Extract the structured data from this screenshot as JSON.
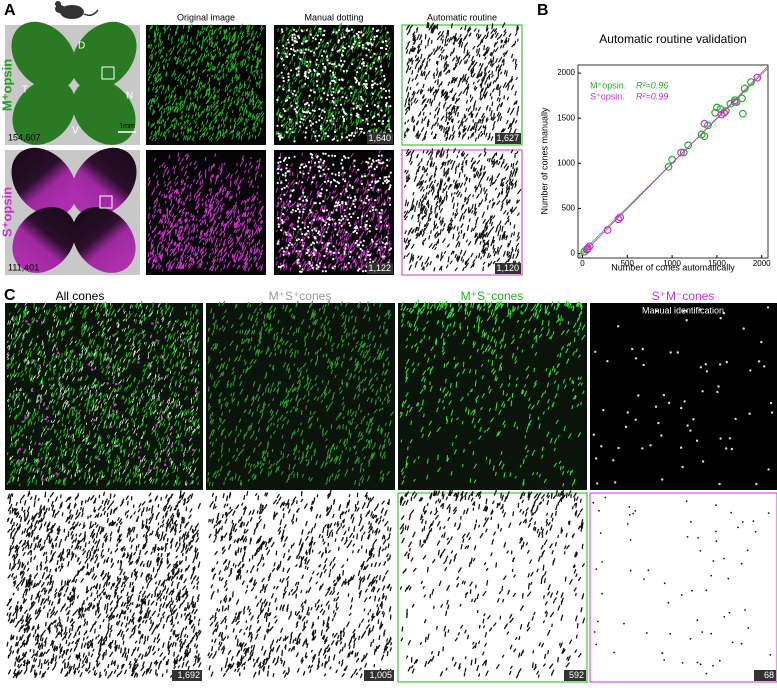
{
  "panel_a": {
    "label": "A",
    "row_labels": [
      "M⁺opsin",
      "S⁺opsin"
    ],
    "column_headers": [
      "Original image",
      "Manual dotting",
      "Automatic routine"
    ],
    "orientation": [
      "D",
      "T",
      "N",
      "V"
    ],
    "scale_bar": "1mm",
    "retina_counts": [
      "154,607",
      "111,401"
    ],
    "counts": [
      [
        "1,640",
        "1,627"
      ],
      [
        "1,122",
        "1,120"
      ]
    ]
  },
  "panel_b": {
    "label": "B"
  },
  "chart_data": {
    "type": "scatter",
    "title": "Automatic routine validation",
    "x_label": "Number of cones automatically",
    "y_label": "Number of cones manually",
    "xlim": [
      -50,
      2070
    ],
    "ylim": [
      -50,
      2090
    ],
    "xticks": [
      0,
      500,
      1000,
      1500,
      2000
    ],
    "yticks": [
      0,
      500,
      1000,
      1500,
      2000
    ],
    "series": [
      {
        "name": "M⁺opsin.",
        "r2": "R²=0.96",
        "color": "#22b422",
        "x": [
          20,
          50,
          960,
          1000,
          1130,
          1180,
          1330,
          1360,
          1400,
          1480,
          1500,
          1540,
          1600,
          1650,
          1700,
          1720,
          1780,
          1790,
          1810,
          1880
        ],
        "values": [
          20,
          40,
          960,
          1040,
          1120,
          1200,
          1320,
          1300,
          1420,
          1560,
          1620,
          1600,
          1580,
          1660,
          1700,
          1680,
          1720,
          1550,
          1830,
          1900
        ]
      },
      {
        "name": "S⁺opsin.",
        "r2": "R²=0.99",
        "color": "#cc33cc",
        "x": [
          50,
          60,
          80,
          280,
          400,
          420,
          1100,
          1360,
          1550,
          1580,
          1700,
          1950
        ],
        "values": [
          50,
          60,
          80,
          260,
          380,
          400,
          1120,
          1440,
          1540,
          1560,
          1680,
          1950
        ]
      }
    ]
  },
  "panel_c": {
    "label": "C",
    "column_headers": [
      "All cones",
      "M⁺S⁺cones",
      "M⁺S⁻cones",
      "S⁺M⁻cones"
    ],
    "annotation": "Manual identification",
    "counts": [
      "1,692",
      "1,005",
      "592",
      "68"
    ]
  }
}
